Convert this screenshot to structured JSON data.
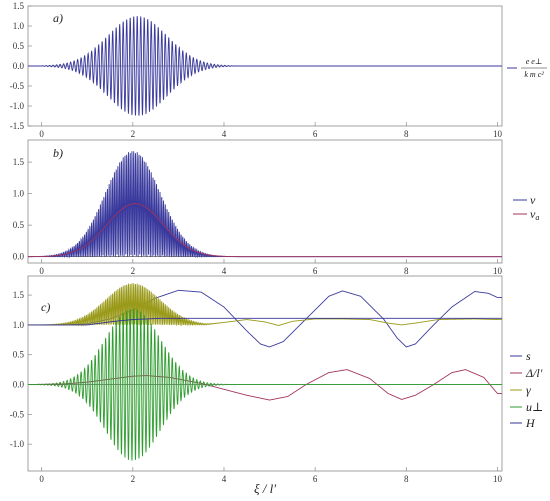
{
  "colors": {
    "blue": "#3a3a9e",
    "magenta": "#a3345e",
    "olive": "#9a9a1a",
    "green": "#2f9e2f",
    "navy": "#333399",
    "frame": "#8a8a8a"
  },
  "chart_data": [
    {
      "type": "line",
      "panel_label": "a)",
      "xlim": [
        -0.3,
        10.1
      ],
      "ylim": [
        -1.5,
        1.5
      ],
      "x_ticks": [
        0,
        2,
        4,
        6,
        8,
        10
      ],
      "y_ticks": [
        -1.5,
        -1.0,
        -0.5,
        0.0,
        0.5,
        1.0,
        1.5
      ],
      "x_tick_labels": [
        "0",
        "2",
        "4",
        "6",
        "8",
        "10"
      ],
      "y_tick_labels": [
        "-1.5",
        "-1.0",
        "-0.5",
        "0.0",
        "0.5",
        "1.0",
        "1.5"
      ],
      "legend_position": "right",
      "series": [
        {
          "name": "e e⊥ / k m c²",
          "legend_top": "e e⊥",
          "legend_bottom": "k m c²",
          "color": "#3a3a9e",
          "shape": "oscillating wave packet",
          "envelope_peak": 1.25,
          "envelope_center": 2.1,
          "envelope_width": 0.65,
          "cycles_per_unit": 13,
          "support": [
            0.0,
            4.2
          ]
        }
      ]
    },
    {
      "type": "line",
      "panel_label": "b)",
      "xlim": [
        -0.3,
        10.1
      ],
      "ylim": [
        -0.1,
        1.85
      ],
      "x_ticks": [
        0,
        2,
        4,
        6,
        8,
        10
      ],
      "y_ticks": [
        0.0,
        0.5,
        1.0,
        1.5
      ],
      "x_tick_labels": [
        "0",
        "2",
        "4",
        "6",
        "8",
        "10"
      ],
      "y_tick_labels": [
        "0.0",
        "0.5",
        "1.0",
        "1.5"
      ],
      "legend_position": "right",
      "series": [
        {
          "name": "v",
          "color": "#3a3a9e",
          "shape": "rectified oscillation",
          "envelope_peak": 1.68,
          "envelope_center": 2.0,
          "envelope_width": 0.6,
          "cycles_per_unit": 13
        },
        {
          "name": "v_a",
          "label_main": "v",
          "label_sub": "a",
          "color": "#a3345e",
          "shape": "gaussian",
          "peak": 0.84,
          "center": 2.05,
          "width": 0.62
        }
      ]
    },
    {
      "type": "line",
      "panel_label": "c)",
      "xlim": [
        -0.3,
        10.1
      ],
      "ylim": [
        -1.45,
        1.82
      ],
      "x_ticks": [
        0,
        2,
        4,
        6,
        8,
        10
      ],
      "y_ticks": [
        -1.0,
        -0.5,
        0.0,
        0.5,
        1.0,
        1.5
      ],
      "x_tick_labels": [
        "0",
        "2",
        "4",
        "6",
        "8",
        "10"
      ],
      "y_tick_labels": [
        "-1.0",
        "-0.5",
        "0.0",
        "0.5",
        "1.0",
        "1.5"
      ],
      "xlabel": "ξ / l'",
      "legend_position": "right",
      "series": [
        {
          "name": "s",
          "color": "#3a3a9e",
          "shape": "rise then oscillation",
          "points": [
            [
              -0.3,
              1.0
            ],
            [
              0.5,
              1.0
            ],
            [
              1.0,
              1.02
            ],
            [
              1.5,
              1.1
            ],
            [
              2.0,
              1.25
            ],
            [
              2.5,
              1.45
            ],
            [
              3.0,
              1.58
            ],
            [
              3.5,
              1.55
            ],
            [
              4.0,
              1.3
            ],
            [
              4.5,
              0.9
            ],
            [
              4.8,
              0.68
            ],
            [
              5.0,
              0.63
            ],
            [
              5.3,
              0.72
            ],
            [
              5.8,
              1.1
            ],
            [
              6.3,
              1.48
            ],
            [
              6.6,
              1.57
            ],
            [
              7.0,
              1.48
            ],
            [
              7.5,
              1.1
            ],
            [
              7.8,
              0.78
            ],
            [
              8.0,
              0.63
            ],
            [
              8.2,
              0.68
            ],
            [
              8.6,
              1.0
            ],
            [
              9.0,
              1.3
            ],
            [
              9.5,
              1.56
            ],
            [
              9.8,
              1.53
            ],
            [
              10.0,
              1.46
            ]
          ]
        },
        {
          "name": "Δ/l'",
          "color": "#a3345e",
          "shape": "slow oscillation",
          "points": [
            [
              -0.3,
              0.0
            ],
            [
              0.5,
              0.01
            ],
            [
              1.0,
              0.04
            ],
            [
              1.5,
              0.09
            ],
            [
              2.0,
              0.14
            ],
            [
              2.3,
              0.15
            ],
            [
              2.8,
              0.12
            ],
            [
              3.5,
              0.02
            ],
            [
              4.0,
              -0.08
            ],
            [
              4.5,
              -0.18
            ],
            [
              5.0,
              -0.26
            ],
            [
              5.4,
              -0.2
            ],
            [
              5.8,
              0.0
            ],
            [
              6.3,
              0.2
            ],
            [
              6.7,
              0.25
            ],
            [
              7.2,
              0.1
            ],
            [
              7.6,
              -0.15
            ],
            [
              7.9,
              -0.25
            ],
            [
              8.2,
              -0.18
            ],
            [
              8.6,
              0.0
            ],
            [
              9.0,
              0.2
            ],
            [
              9.3,
              0.25
            ],
            [
              9.7,
              0.12
            ],
            [
              10.0,
              -0.15
            ]
          ]
        },
        {
          "name": "γ",
          "color": "#9a9a1a",
          "shape": "packet then small oscillation",
          "envelope_peak": 0.7,
          "envelope_center": 2.0,
          "envelope_width": 0.6,
          "cycles_per_unit": 13,
          "baseline_points": [
            [
              -0.3,
              1.0
            ],
            [
              3.6,
              1.0
            ],
            [
              4.0,
              1.04
            ],
            [
              4.5,
              1.09
            ],
            [
              4.9,
              1.05
            ],
            [
              5.2,
              0.99
            ],
            [
              5.5,
              1.06
            ],
            [
              6.0,
              1.1
            ],
            [
              6.6,
              1.1
            ],
            [
              7.2,
              1.09
            ],
            [
              7.6,
              1.03
            ],
            [
              7.9,
              1.0
            ],
            [
              8.2,
              1.03
            ],
            [
              8.7,
              1.09
            ],
            [
              9.5,
              1.1
            ],
            [
              10.0,
              1.09
            ]
          ]
        },
        {
          "name": "u⊥",
          "color": "#2f9e2f",
          "shape": "oscillating wave packet",
          "envelope_peak": 1.28,
          "envelope_center": 2.0,
          "envelope_width": 0.6,
          "cycles_per_unit": 13
        },
        {
          "name": "H",
          "color": "#333399",
          "shape": "step",
          "points": [
            [
              -0.3,
              1.0
            ],
            [
              1.0,
              1.0
            ],
            [
              1.2,
              1.02
            ],
            [
              1.6,
              1.06
            ],
            [
              2.0,
              1.09
            ],
            [
              2.6,
              1.11
            ],
            [
              10.0,
              1.11
            ]
          ]
        }
      ]
    }
  ]
}
